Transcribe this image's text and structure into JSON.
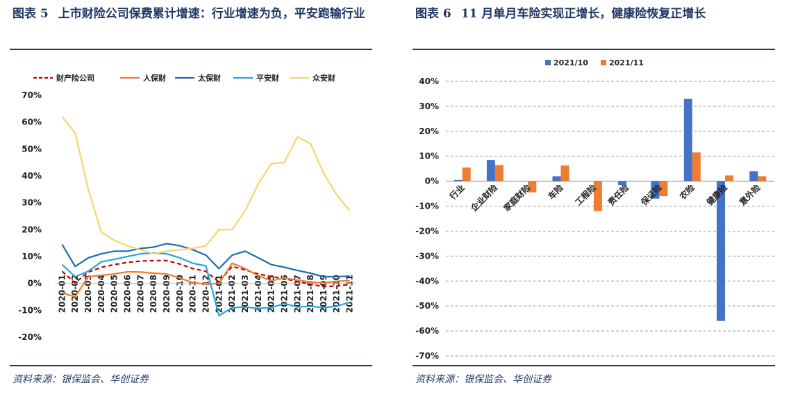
{
  "left": {
    "figure_label": "图表 5",
    "title": "上市财险公司保费累计增速：行业增速为负，平安跑输行业",
    "source": "资料来源：银保监会、华创证券"
  },
  "right": {
    "figure_label": "图表 6",
    "title": "11 月单月车险实现正增长，健康险恢复正增长",
    "source": "资料来源：银保监会、华创证券"
  },
  "chart_data": [
    {
      "type": "line",
      "title": "",
      "x": [
        "2020-01",
        "2020-02",
        "2020-03",
        "2020-04",
        "2020-05",
        "2020-06",
        "2020-07",
        "2020-08",
        "2020-09",
        "2020-10",
        "2020-11",
        "2020-12",
        "2021-01",
        "2021-02",
        "2021-03",
        "2021-04",
        "2021-05",
        "2021-06",
        "2021-07",
        "2021-08",
        "2021-09",
        "2021-10",
        "2021-11"
      ],
      "ylim": [
        -20,
        70
      ],
      "yticks": [
        -20,
        -10,
        0,
        10,
        20,
        30,
        40,
        50,
        60,
        70
      ],
      "ytick_labels": [
        "-20%",
        "-10%",
        "0%",
        "10%",
        "20%",
        "30%",
        "40%",
        "50%",
        "60%",
        "70%"
      ],
      "grid": false,
      "legend_position": "top",
      "series": [
        {
          "name": "财产险公司",
          "color": "#c00000",
          "dash": true,
          "values": [
            4.5,
            0.2,
            4.2,
            6.0,
            7.0,
            7.8,
            8.3,
            8.5,
            8.5,
            7.2,
            5.5,
            4.5,
            0.5,
            6.3,
            5.0,
            3.5,
            2.5,
            1.8,
            0.7,
            -0.3,
            -1.2,
            -1.0,
            -0.4
          ]
        },
        {
          "name": "人保财",
          "color": "#ed7d31",
          "dash": false,
          "values": [
            -3.5,
            -5.0,
            2.5,
            3.0,
            3.5,
            4.3,
            4.2,
            3.8,
            3.5,
            2.0,
            0.3,
            -0.3,
            0.0,
            7.5,
            5.5,
            2.8,
            1.0,
            2.0,
            1.2,
            0.5,
            0.2,
            0.8,
            1.0
          ]
        },
        {
          "name": "太保财",
          "color": "#1f6cb0",
          "dash": false,
          "values": [
            14.5,
            6.3,
            9.5,
            11.0,
            12.0,
            12.0,
            13.0,
            13.5,
            14.8,
            14.0,
            12.5,
            10.5,
            5.5,
            10.5,
            12.0,
            9.5,
            7.0,
            6.0,
            4.8,
            3.8,
            2.5,
            2.5,
            2.7
          ]
        },
        {
          "name": "平安财",
          "color": "#22a7e0",
          "dash": false,
          "values": [
            7.0,
            2.5,
            4.5,
            8.0,
            9.0,
            10.0,
            11.0,
            11.3,
            11.0,
            9.5,
            7.5,
            6.5,
            -12.0,
            -9.0,
            -8.8,
            -9.3,
            -9.0,
            -7.5,
            -8.8,
            -8.5,
            -9.0,
            -8.5,
            -7.0
          ]
        },
        {
          "name": "众安财",
          "color": "#f5d56a",
          "dash": false,
          "values": [
            62.0,
            56.0,
            35.0,
            19.0,
            16.0,
            14.0,
            12.5,
            11.0,
            12.0,
            12.5,
            13.0,
            14.0,
            20.0,
            20.0,
            27.0,
            37.0,
            44.5,
            45.0,
            54.5,
            52.0,
            41.0,
            33.0,
            27.0
          ]
        }
      ]
    },
    {
      "type": "bar",
      "title": "",
      "categories": [
        "行业",
        "企业财险",
        "家庭财险",
        "车险",
        "工程险",
        "责任险",
        "保证险",
        "农险",
        "健康险",
        "意外险"
      ],
      "ylim": [
        -70,
        40
      ],
      "yticks": [
        -70,
        -60,
        -50,
        -40,
        -30,
        -20,
        -10,
        0,
        10,
        20,
        30,
        40
      ],
      "ytick_labels": [
        "-70%",
        "-60%",
        "-50%",
        "-40%",
        "-30%",
        "-20%",
        "-10%",
        "0%",
        "10%",
        "20%",
        "30%",
        "40%"
      ],
      "grid": true,
      "legend_position": "top",
      "series": [
        {
          "name": "2021/10",
          "color": "#4472c4",
          "values": [
            0.5,
            8.5,
            0.0,
            2.0,
            0.0,
            -1.5,
            -7.0,
            33.0,
            -56.0,
            4.0
          ]
        },
        {
          "name": "2021/11",
          "color": "#ed7d31",
          "values": [
            5.5,
            6.5,
            -4.5,
            6.3,
            -12.0,
            0.0,
            -6.0,
            11.5,
            2.3,
            2.0
          ]
        }
      ]
    }
  ]
}
